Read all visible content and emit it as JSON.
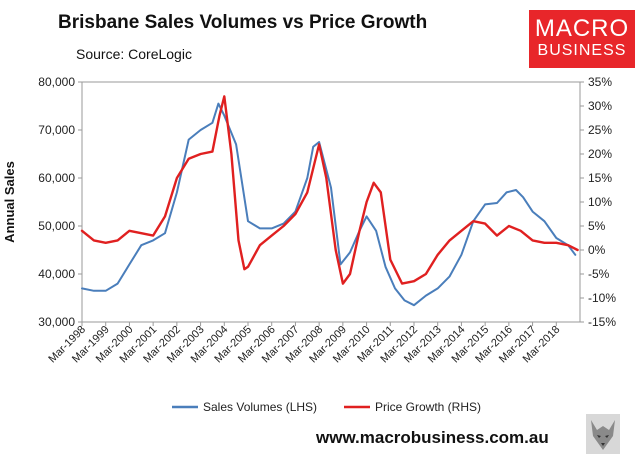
{
  "header": {
    "title": "Brisbane Sales Volumes vs Price Growth",
    "source": "Source: CoreLogic"
  },
  "brand": {
    "logo_line1": "MACRO",
    "logo_line2": "BUSINESS",
    "logo_color": "#e8262a",
    "website": "www.macrobusiness.com.au"
  },
  "chart_data": {
    "type": "line",
    "title": "Brisbane Sales Volumes vs Price Growth",
    "ylabel": "Annual Sales",
    "ylim": [
      30000,
      80000
    ],
    "y_ticks": [
      "30,000",
      "40,000",
      "50,000",
      "60,000",
      "70,000",
      "80,000"
    ],
    "y2lim": [
      -15,
      35
    ],
    "y2_ticks": [
      "-15%",
      "-10%",
      "-5%",
      "0%",
      "5%",
      "10%",
      "15%",
      "20%",
      "25%",
      "30%",
      "35%"
    ],
    "x_ticks": [
      "Mar-1998",
      "Mar-1999",
      "Mar-2000",
      "Mar-2001",
      "Mar-2002",
      "Mar-2003",
      "Mar-2004",
      "Mar-2005",
      "Mar-2006",
      "Mar-2007",
      "Mar-2008",
      "Mar-2009",
      "Mar-2010",
      "Mar-2011",
      "Mar-2012",
      "Mar-2013",
      "Mar-2014",
      "Mar-2015",
      "Mar-2016",
      "Mar-2017",
      "Mar-2018"
    ],
    "legend_position": "bottom",
    "grid": false,
    "series": [
      {
        "name": "Sales Volumes (LHS)",
        "axis": "left",
        "color": "#4a7ebb",
        "x": [
          1998.0,
          1998.5,
          1999.0,
          1999.5,
          2000.0,
          2000.5,
          2001.0,
          2001.5,
          2002.0,
          2002.5,
          2003.0,
          2003.5,
          2003.75,
          2004.0,
          2004.5,
          2005.0,
          2005.5,
          2006.0,
          2006.5,
          2007.0,
          2007.5,
          2007.75,
          2008.0,
          2008.5,
          2008.9,
          2009.3,
          2009.7,
          2010.0,
          2010.4,
          2010.8,
          2011.2,
          2011.6,
          2012.0,
          2012.5,
          2013.0,
          2013.5,
          2014.0,
          2014.5,
          2015.0,
          2015.5,
          2015.9,
          2016.3,
          2016.6,
          2017.0,
          2017.5,
          2018.0,
          2018.5,
          2018.8
        ],
        "values": [
          37000,
          36500,
          36500,
          38000,
          42000,
          46000,
          47000,
          48500,
          57000,
          68000,
          70000,
          71500,
          75500,
          73000,
          67000,
          51000,
          49500,
          49500,
          50500,
          53000,
          60000,
          66500,
          67500,
          58000,
          42000,
          44500,
          49000,
          52000,
          49000,
          41500,
          37000,
          34500,
          33500,
          35500,
          37000,
          39500,
          44000,
          51000,
          54500,
          54800,
          57000,
          57500,
          56000,
          53000,
          51000,
          47500,
          46000,
          44000
        ]
      },
      {
        "name": "Price Growth (RHS)",
        "axis": "right",
        "color": "#e02020",
        "x": [
          1998.0,
          1998.5,
          1999.0,
          1999.5,
          2000.0,
          2000.5,
          2001.0,
          2001.5,
          2002.0,
          2002.5,
          2003.0,
          2003.5,
          2003.8,
          2004.0,
          2004.3,
          2004.6,
          2004.85,
          2005.0,
          2005.5,
          2006.0,
          2006.5,
          2007.0,
          2007.5,
          2008.0,
          2008.3,
          2008.7,
          2009.0,
          2009.3,
          2009.7,
          2010.0,
          2010.3,
          2010.6,
          2011.0,
          2011.5,
          2012.0,
          2012.5,
          2013.0,
          2013.5,
          2014.0,
          2014.5,
          2015.0,
          2015.5,
          2016.0,
          2016.5,
          2017.0,
          2017.5,
          2018.0,
          2018.5,
          2018.9
        ],
        "values": [
          4,
          2,
          1.5,
          2,
          4,
          3.5,
          3,
          7,
          15,
          19,
          20,
          20.5,
          28,
          32,
          20,
          2,
          -4,
          -3.5,
          1,
          3,
          5,
          7.5,
          12,
          22,
          15,
          0,
          -7,
          -5,
          4,
          10,
          14,
          12,
          -2,
          -7,
          -6.5,
          -5,
          -1,
          2,
          4,
          6,
          5.5,
          3,
          5,
          4,
          2,
          1.5,
          1.5,
          1,
          0
        ]
      }
    ]
  }
}
